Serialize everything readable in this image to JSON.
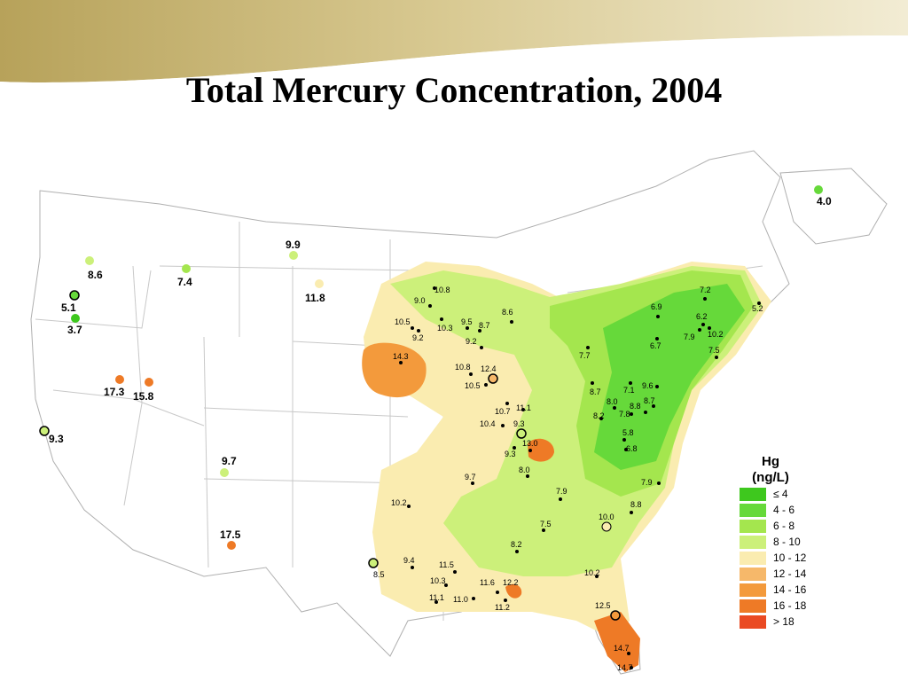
{
  "title": "Total Mercury Concentration, 2004",
  "legend": {
    "title_line1": "Hg",
    "title_line2": "(ng/L)",
    "items": [
      {
        "label": "≤ 4",
        "color": "#3ec81e"
      },
      {
        "label": "4 - 6",
        "color": "#66d93a"
      },
      {
        "label": "6 - 8",
        "color": "#a4e64e"
      },
      {
        "label": "8 - 10",
        "color": "#ccf07a"
      },
      {
        "label": "10 - 12",
        "color": "#faecb0"
      },
      {
        "label": "12 - 14",
        "color": "#f6b86a"
      },
      {
        "label": "14 - 16",
        "color": "#f39a3c"
      },
      {
        "label": "16 - 18",
        "color": "#ee7a26"
      },
      {
        "label": "> 18",
        "color": "#ea4a22"
      }
    ]
  },
  "sites": {
    "west": [
      "4.0",
      "9.9",
      "8.6",
      "7.4",
      "11.8",
      "5.1",
      "3.7",
      "17.3",
      "15.8",
      "9.3",
      "9.7",
      "17.5"
    ],
    "central_labels": [
      "10.8",
      "9.0",
      "10.5",
      "9.2",
      "10.3",
      "9.5",
      "8.7",
      "8.6",
      "9.2",
      "14.3",
      "10.8",
      "12.4",
      "10.5",
      "10.7",
      "11.1",
      "10.4",
      "9.3",
      "13.0",
      "9.3",
      "8.0",
      "9.7",
      "10.2",
      "7.9",
      "7.5",
      "8.2",
      "10.0",
      "8.8",
      "9.4",
      "8.5",
      "11.5",
      "10.3",
      "11.6",
      "12.2",
      "11.1",
      "11.0",
      "11.2",
      "10.2",
      "12.5",
      "14.7",
      "14.7",
      "7.9"
    ],
    "east_labels": [
      "7.2",
      "6.9",
      "6.2",
      "7.9",
      "10.2",
      "6.7",
      "7.5",
      "7.7",
      "8.7",
      "7.1",
      "9.6",
      "8.0",
      "8.7",
      "8.2",
      "7.8",
      "8.8",
      "5.8",
      "6.8",
      "5.2"
    ]
  }
}
